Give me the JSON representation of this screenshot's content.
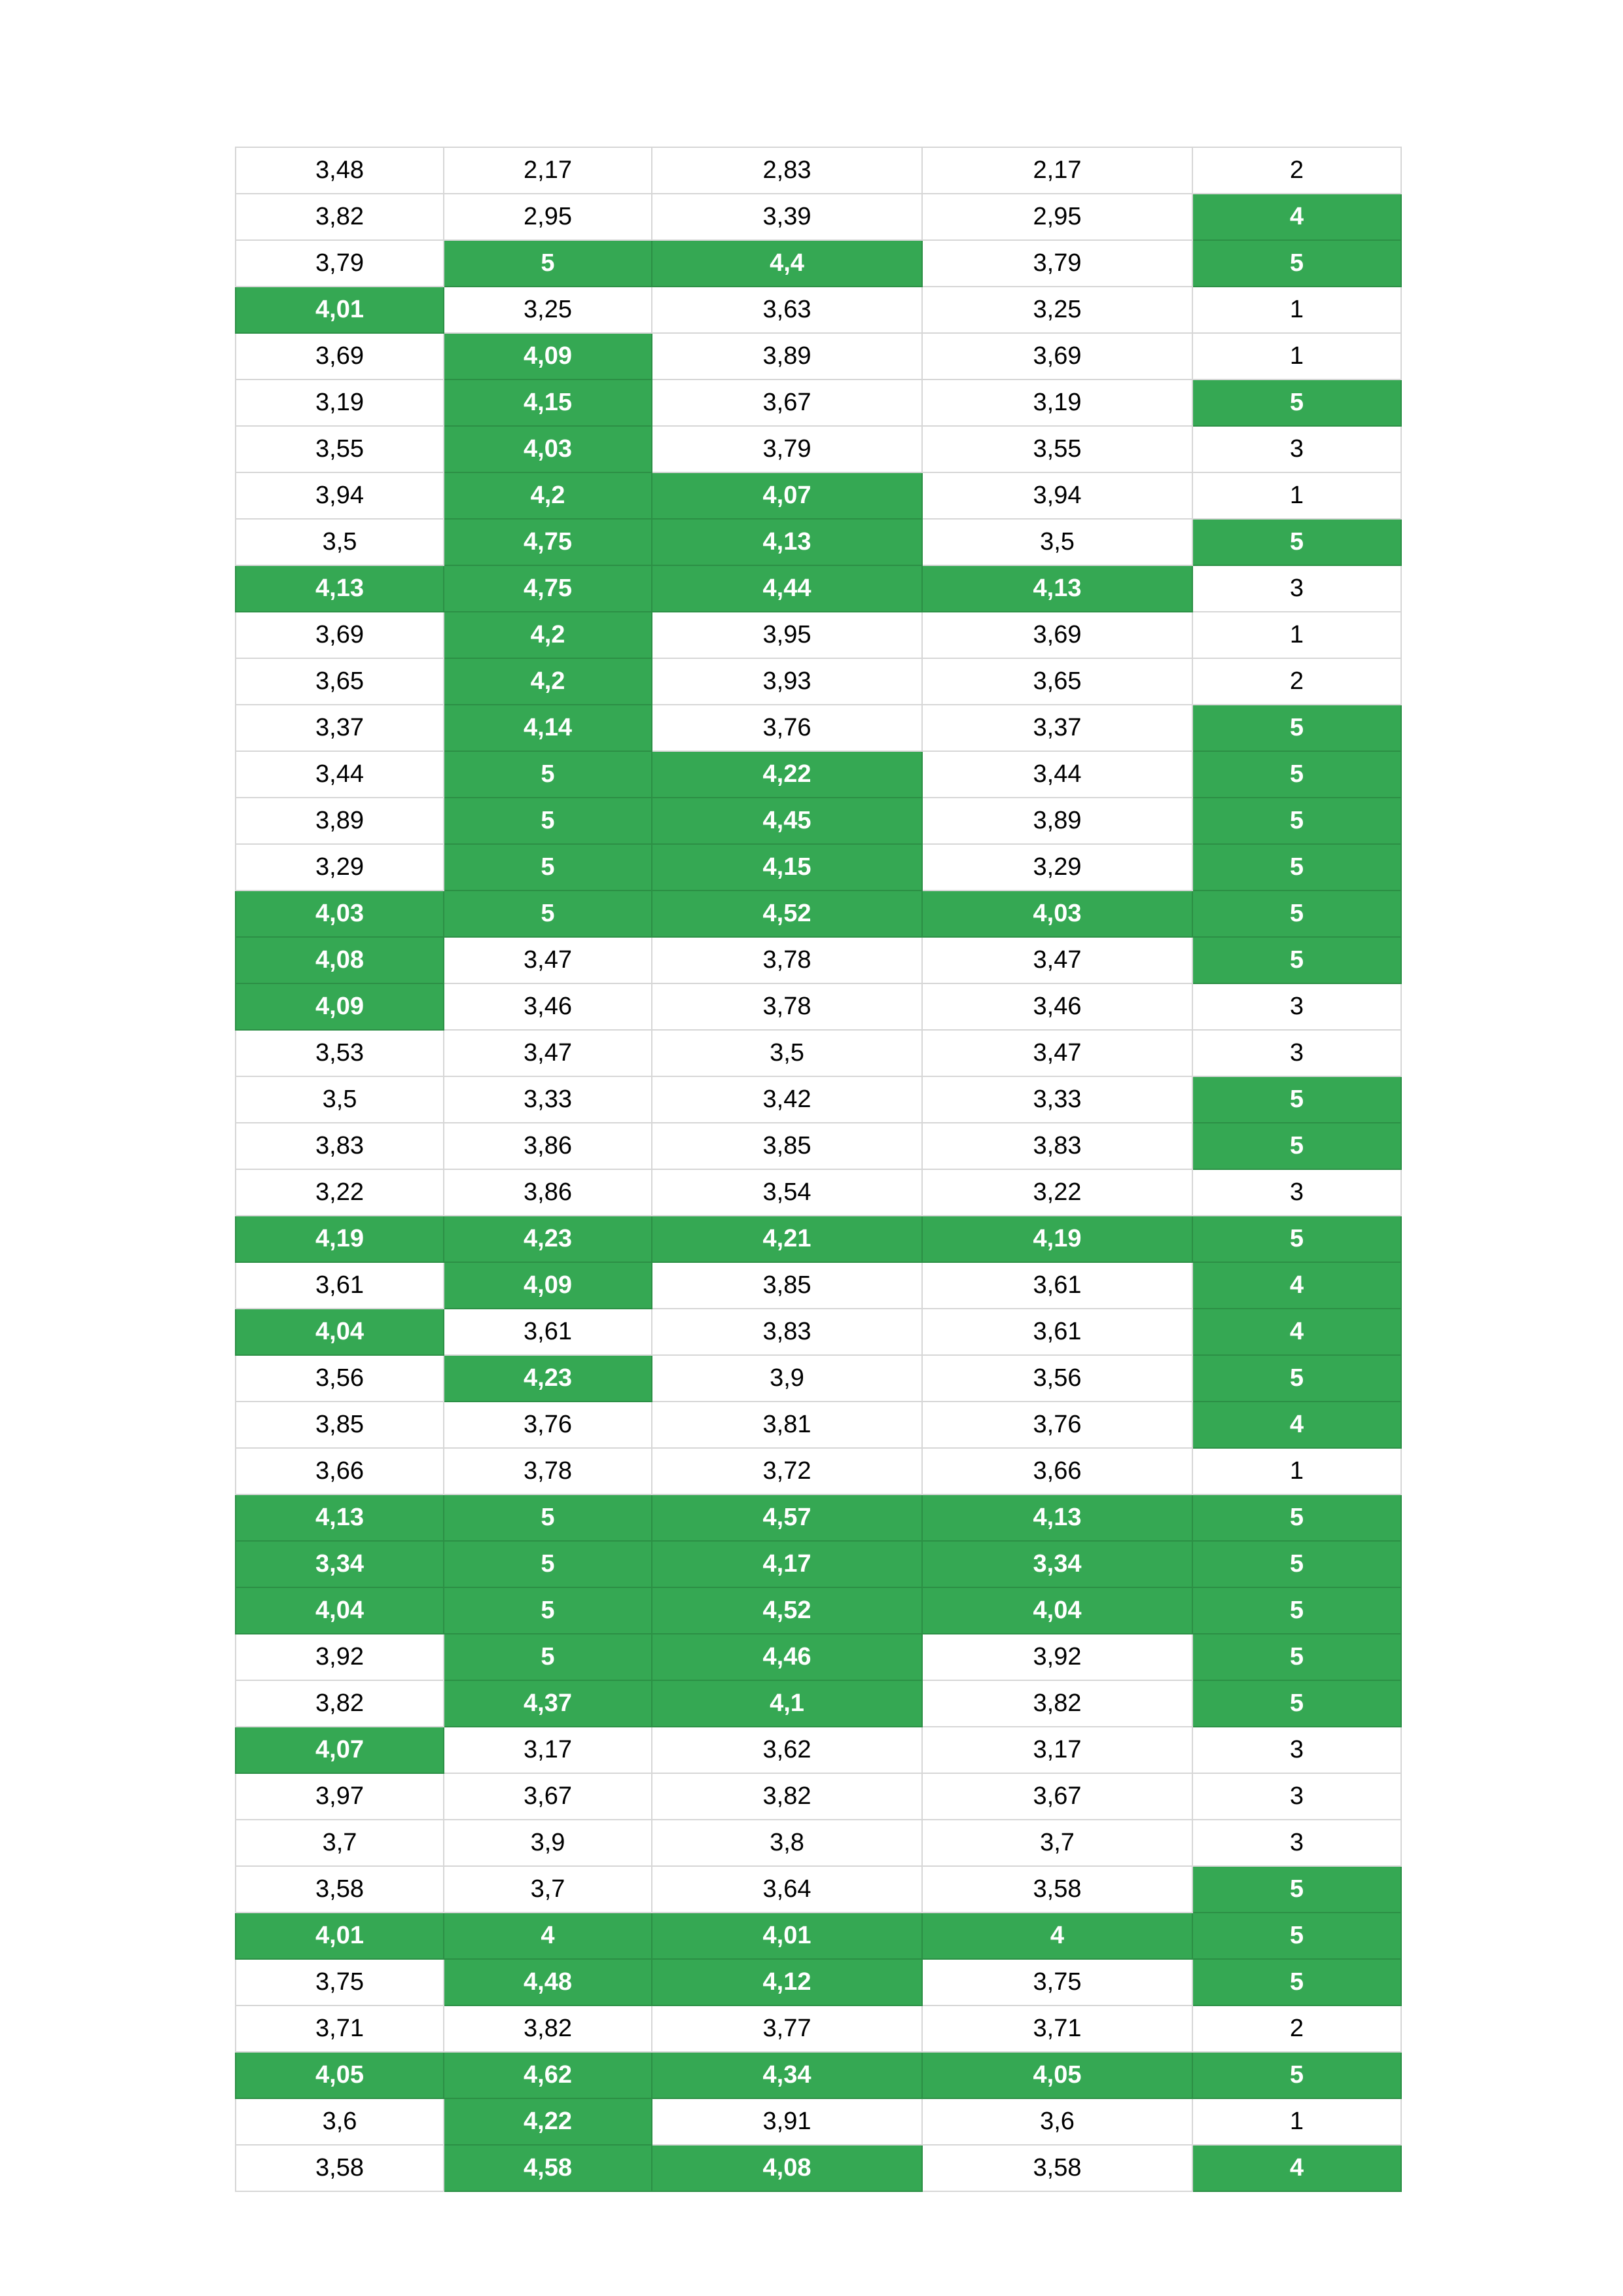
{
  "colors": {
    "highlight_fill": "#35a853",
    "highlight_text": "#ffffff",
    "grid_line": "#d6d6d6"
  },
  "table": {
    "rows": [
      {
        "cells": [
          {
            "v": "3,48",
            "hl": false
          },
          {
            "v": "2,17",
            "hl": false
          },
          {
            "v": "2,83",
            "hl": false
          },
          {
            "v": "2,17",
            "hl": false
          },
          {
            "v": "2",
            "hl": false
          }
        ]
      },
      {
        "cells": [
          {
            "v": "3,82",
            "hl": false
          },
          {
            "v": "2,95",
            "hl": false
          },
          {
            "v": "3,39",
            "hl": false
          },
          {
            "v": "2,95",
            "hl": false
          },
          {
            "v": "4",
            "hl": true
          }
        ]
      },
      {
        "cells": [
          {
            "v": "3,79",
            "hl": false
          },
          {
            "v": "5",
            "hl": true
          },
          {
            "v": "4,4",
            "hl": true
          },
          {
            "v": "3,79",
            "hl": false
          },
          {
            "v": "5",
            "hl": true
          }
        ]
      },
      {
        "cells": [
          {
            "v": "4,01",
            "hl": true
          },
          {
            "v": "3,25",
            "hl": false
          },
          {
            "v": "3,63",
            "hl": false
          },
          {
            "v": "3,25",
            "hl": false
          },
          {
            "v": "1",
            "hl": false
          }
        ]
      },
      {
        "cells": [
          {
            "v": "3,69",
            "hl": false
          },
          {
            "v": "4,09",
            "hl": true
          },
          {
            "v": "3,89",
            "hl": false
          },
          {
            "v": "3,69",
            "hl": false
          },
          {
            "v": "1",
            "hl": false
          }
        ]
      },
      {
        "cells": [
          {
            "v": "3,19",
            "hl": false
          },
          {
            "v": "4,15",
            "hl": true
          },
          {
            "v": "3,67",
            "hl": false
          },
          {
            "v": "3,19",
            "hl": false
          },
          {
            "v": "5",
            "hl": true
          }
        ]
      },
      {
        "cells": [
          {
            "v": "3,55",
            "hl": false
          },
          {
            "v": "4,03",
            "hl": true
          },
          {
            "v": "3,79",
            "hl": false
          },
          {
            "v": "3,55",
            "hl": false
          },
          {
            "v": "3",
            "hl": false
          }
        ]
      },
      {
        "cells": [
          {
            "v": "3,94",
            "hl": false
          },
          {
            "v": "4,2",
            "hl": true
          },
          {
            "v": "4,07",
            "hl": true
          },
          {
            "v": "3,94",
            "hl": false
          },
          {
            "v": "1",
            "hl": false
          }
        ]
      },
      {
        "cells": [
          {
            "v": "3,5",
            "hl": false
          },
          {
            "v": "4,75",
            "hl": true
          },
          {
            "v": "4,13",
            "hl": true
          },
          {
            "v": "3,5",
            "hl": false
          },
          {
            "v": "5",
            "hl": true
          }
        ]
      },
      {
        "cells": [
          {
            "v": "4,13",
            "hl": true
          },
          {
            "v": "4,75",
            "hl": true
          },
          {
            "v": "4,44",
            "hl": true
          },
          {
            "v": "4,13",
            "hl": true
          },
          {
            "v": "3",
            "hl": false
          }
        ]
      },
      {
        "cells": [
          {
            "v": "3,69",
            "hl": false
          },
          {
            "v": "4,2",
            "hl": true
          },
          {
            "v": "3,95",
            "hl": false
          },
          {
            "v": "3,69",
            "hl": false
          },
          {
            "v": "1",
            "hl": false
          }
        ]
      },
      {
        "cells": [
          {
            "v": "3,65",
            "hl": false
          },
          {
            "v": "4,2",
            "hl": true
          },
          {
            "v": "3,93",
            "hl": false
          },
          {
            "v": "3,65",
            "hl": false
          },
          {
            "v": "2",
            "hl": false
          }
        ]
      },
      {
        "cells": [
          {
            "v": "3,37",
            "hl": false
          },
          {
            "v": "4,14",
            "hl": true
          },
          {
            "v": "3,76",
            "hl": false
          },
          {
            "v": "3,37",
            "hl": false
          },
          {
            "v": "5",
            "hl": true
          }
        ]
      },
      {
        "cells": [
          {
            "v": "3,44",
            "hl": false
          },
          {
            "v": "5",
            "hl": true
          },
          {
            "v": "4,22",
            "hl": true
          },
          {
            "v": "3,44",
            "hl": false
          },
          {
            "v": "5",
            "hl": true
          }
        ]
      },
      {
        "cells": [
          {
            "v": "3,89",
            "hl": false
          },
          {
            "v": "5",
            "hl": true
          },
          {
            "v": "4,45",
            "hl": true
          },
          {
            "v": "3,89",
            "hl": false
          },
          {
            "v": "5",
            "hl": true
          }
        ]
      },
      {
        "cells": [
          {
            "v": "3,29",
            "hl": false
          },
          {
            "v": "5",
            "hl": true
          },
          {
            "v": "4,15",
            "hl": true
          },
          {
            "v": "3,29",
            "hl": false
          },
          {
            "v": "5",
            "hl": true
          }
        ]
      },
      {
        "cells": [
          {
            "v": "4,03",
            "hl": true
          },
          {
            "v": "5",
            "hl": true
          },
          {
            "v": "4,52",
            "hl": true
          },
          {
            "v": "4,03",
            "hl": true
          },
          {
            "v": "5",
            "hl": true
          }
        ]
      },
      {
        "cells": [
          {
            "v": "4,08",
            "hl": true
          },
          {
            "v": "3,47",
            "hl": false
          },
          {
            "v": "3,78",
            "hl": false
          },
          {
            "v": "3,47",
            "hl": false
          },
          {
            "v": "5",
            "hl": true
          }
        ]
      },
      {
        "cells": [
          {
            "v": "4,09",
            "hl": true
          },
          {
            "v": "3,46",
            "hl": false
          },
          {
            "v": "3,78",
            "hl": false
          },
          {
            "v": "3,46",
            "hl": false
          },
          {
            "v": "3",
            "hl": false
          }
        ]
      },
      {
        "cells": [
          {
            "v": "3,53",
            "hl": false
          },
          {
            "v": "3,47",
            "hl": false
          },
          {
            "v": "3,5",
            "hl": false
          },
          {
            "v": "3,47",
            "hl": false
          },
          {
            "v": "3",
            "hl": false
          }
        ]
      },
      {
        "cells": [
          {
            "v": "3,5",
            "hl": false
          },
          {
            "v": "3,33",
            "hl": false
          },
          {
            "v": "3,42",
            "hl": false
          },
          {
            "v": "3,33",
            "hl": false
          },
          {
            "v": "5",
            "hl": true
          }
        ]
      },
      {
        "cells": [
          {
            "v": "3,83",
            "hl": false
          },
          {
            "v": "3,86",
            "hl": false
          },
          {
            "v": "3,85",
            "hl": false
          },
          {
            "v": "3,83",
            "hl": false
          },
          {
            "v": "5",
            "hl": true
          }
        ]
      },
      {
        "cells": [
          {
            "v": "3,22",
            "hl": false
          },
          {
            "v": "3,86",
            "hl": false
          },
          {
            "v": "3,54",
            "hl": false
          },
          {
            "v": "3,22",
            "hl": false
          },
          {
            "v": "3",
            "hl": false
          }
        ]
      },
      {
        "cells": [
          {
            "v": "4,19",
            "hl": true
          },
          {
            "v": "4,23",
            "hl": true
          },
          {
            "v": "4,21",
            "hl": true
          },
          {
            "v": "4,19",
            "hl": true
          },
          {
            "v": "5",
            "hl": true
          }
        ]
      },
      {
        "cells": [
          {
            "v": "3,61",
            "hl": false
          },
          {
            "v": "4,09",
            "hl": true
          },
          {
            "v": "3,85",
            "hl": false
          },
          {
            "v": "3,61",
            "hl": false
          },
          {
            "v": "4",
            "hl": true
          }
        ]
      },
      {
        "cells": [
          {
            "v": "4,04",
            "hl": true
          },
          {
            "v": "3,61",
            "hl": false
          },
          {
            "v": "3,83",
            "hl": false
          },
          {
            "v": "3,61",
            "hl": false
          },
          {
            "v": "4",
            "hl": true
          }
        ]
      },
      {
        "cells": [
          {
            "v": "3,56",
            "hl": false
          },
          {
            "v": "4,23",
            "hl": true
          },
          {
            "v": "3,9",
            "hl": false
          },
          {
            "v": "3,56",
            "hl": false
          },
          {
            "v": "5",
            "hl": true
          }
        ]
      },
      {
        "cells": [
          {
            "v": "3,85",
            "hl": false
          },
          {
            "v": "3,76",
            "hl": false
          },
          {
            "v": "3,81",
            "hl": false
          },
          {
            "v": "3,76",
            "hl": false
          },
          {
            "v": "4",
            "hl": true
          }
        ]
      },
      {
        "cells": [
          {
            "v": "3,66",
            "hl": false
          },
          {
            "v": "3,78",
            "hl": false
          },
          {
            "v": "3,72",
            "hl": false
          },
          {
            "v": "3,66",
            "hl": false
          },
          {
            "v": "1",
            "hl": false
          }
        ]
      },
      {
        "cells": [
          {
            "v": "4,13",
            "hl": true
          },
          {
            "v": "5",
            "hl": true
          },
          {
            "v": "4,57",
            "hl": true
          },
          {
            "v": "4,13",
            "hl": true
          },
          {
            "v": "5",
            "hl": true
          }
        ]
      },
      {
        "cells": [
          {
            "v": "3,34",
            "hl": true
          },
          {
            "v": "5",
            "hl": true
          },
          {
            "v": "4,17",
            "hl": true
          },
          {
            "v": "3,34",
            "hl": true
          },
          {
            "v": "5",
            "hl": true
          }
        ]
      },
      {
        "cells": [
          {
            "v": "4,04",
            "hl": true
          },
          {
            "v": "5",
            "hl": true
          },
          {
            "v": "4,52",
            "hl": true
          },
          {
            "v": "4,04",
            "hl": true
          },
          {
            "v": "5",
            "hl": true
          }
        ]
      },
      {
        "cells": [
          {
            "v": "3,92",
            "hl": false
          },
          {
            "v": "5",
            "hl": true
          },
          {
            "v": "4,46",
            "hl": true
          },
          {
            "v": "3,92",
            "hl": false
          },
          {
            "v": "5",
            "hl": true
          }
        ]
      },
      {
        "cells": [
          {
            "v": "3,82",
            "hl": false
          },
          {
            "v": "4,37",
            "hl": true
          },
          {
            "v": "4,1",
            "hl": true
          },
          {
            "v": "3,82",
            "hl": false
          },
          {
            "v": "5",
            "hl": true
          }
        ]
      },
      {
        "cells": [
          {
            "v": "4,07",
            "hl": true
          },
          {
            "v": "3,17",
            "hl": false
          },
          {
            "v": "3,62",
            "hl": false
          },
          {
            "v": "3,17",
            "hl": false
          },
          {
            "v": "3",
            "hl": false
          }
        ]
      },
      {
        "cells": [
          {
            "v": "3,97",
            "hl": false
          },
          {
            "v": "3,67",
            "hl": false
          },
          {
            "v": "3,82",
            "hl": false
          },
          {
            "v": "3,67",
            "hl": false
          },
          {
            "v": "3",
            "hl": false
          }
        ]
      },
      {
        "cells": [
          {
            "v": "3,7",
            "hl": false
          },
          {
            "v": "3,9",
            "hl": false
          },
          {
            "v": "3,8",
            "hl": false
          },
          {
            "v": "3,7",
            "hl": false
          },
          {
            "v": "3",
            "hl": false
          }
        ]
      },
      {
        "cells": [
          {
            "v": "3,58",
            "hl": false
          },
          {
            "v": "3,7",
            "hl": false
          },
          {
            "v": "3,64",
            "hl": false
          },
          {
            "v": "3,58",
            "hl": false
          },
          {
            "v": "5",
            "hl": true
          }
        ]
      },
      {
        "cells": [
          {
            "v": "4,01",
            "hl": true
          },
          {
            "v": "4",
            "hl": true
          },
          {
            "v": "4,01",
            "hl": true
          },
          {
            "v": "4",
            "hl": true
          },
          {
            "v": "5",
            "hl": true
          }
        ]
      },
      {
        "cells": [
          {
            "v": "3,75",
            "hl": false
          },
          {
            "v": "4,48",
            "hl": true
          },
          {
            "v": "4,12",
            "hl": true
          },
          {
            "v": "3,75",
            "hl": false
          },
          {
            "v": "5",
            "hl": true
          }
        ]
      },
      {
        "cells": [
          {
            "v": "3,71",
            "hl": false
          },
          {
            "v": "3,82",
            "hl": false
          },
          {
            "v": "3,77",
            "hl": false
          },
          {
            "v": "3,71",
            "hl": false
          },
          {
            "v": "2",
            "hl": false
          }
        ]
      },
      {
        "cells": [
          {
            "v": "4,05",
            "hl": true
          },
          {
            "v": "4,62",
            "hl": true
          },
          {
            "v": "4,34",
            "hl": true
          },
          {
            "v": "4,05",
            "hl": true
          },
          {
            "v": "5",
            "hl": true
          }
        ]
      },
      {
        "cells": [
          {
            "v": "3,6",
            "hl": false
          },
          {
            "v": "4,22",
            "hl": true
          },
          {
            "v": "3,91",
            "hl": false
          },
          {
            "v": "3,6",
            "hl": false
          },
          {
            "v": "1",
            "hl": false
          }
        ]
      },
      {
        "cells": [
          {
            "v": "3,58",
            "hl": false
          },
          {
            "v": "4,58",
            "hl": true
          },
          {
            "v": "4,08",
            "hl": true
          },
          {
            "v": "3,58",
            "hl": false
          },
          {
            "v": "4",
            "hl": true
          }
        ]
      }
    ]
  }
}
